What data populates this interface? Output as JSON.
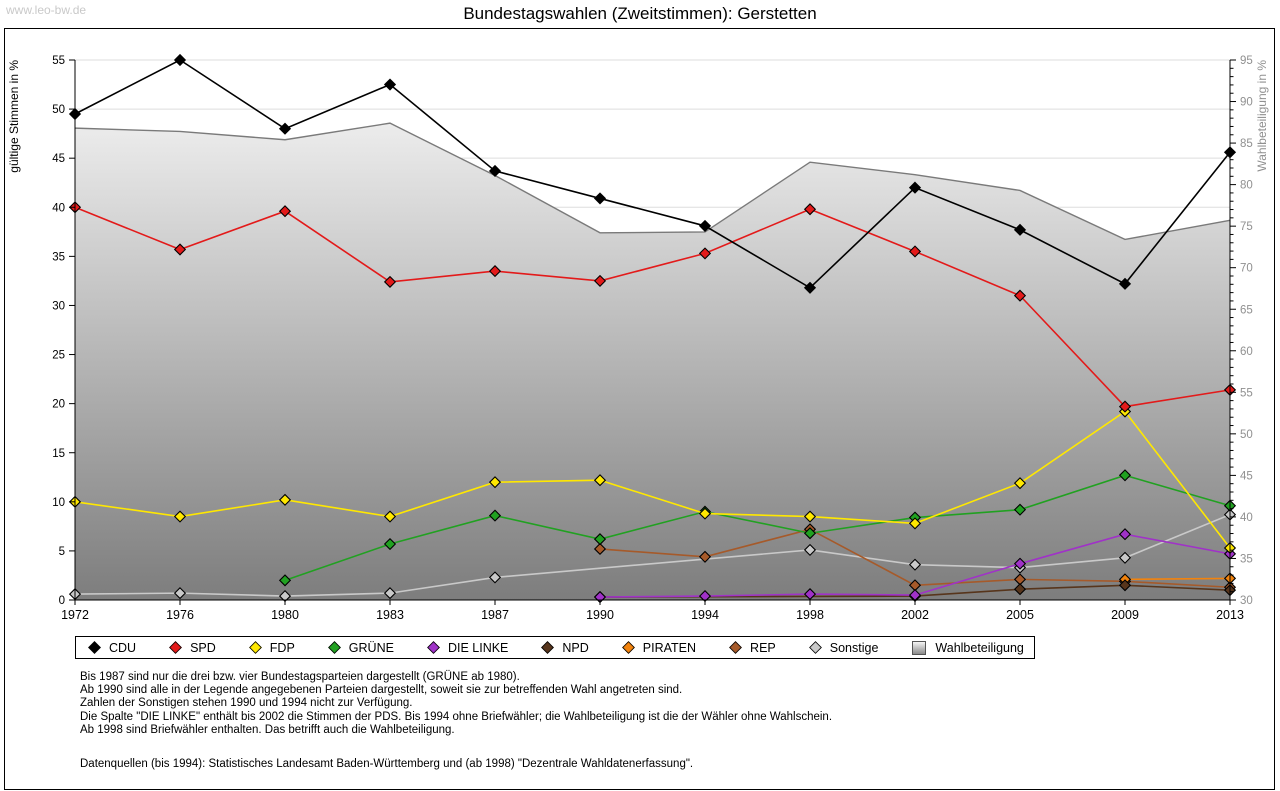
{
  "page": {
    "watermark": "www.leo-bw.de",
    "title": "Bundestagswahlen (Zweitstimmen): Gerstetten"
  },
  "chart_data": {
    "type": "line",
    "title": "Bundestagswahlen (Zweitstimmen): Gerstetten",
    "categories": [
      "1972",
      "1976",
      "1980",
      "1983",
      "1987",
      "1990",
      "1994",
      "1998",
      "2002",
      "2005",
      "2009",
      "2013"
    ],
    "y_left_axis": {
      "label": "gültige Stimmen in %",
      "min": 0,
      "max": 55,
      "tick_step": 5,
      "ticks": [
        0,
        5,
        10,
        15,
        20,
        25,
        30,
        35,
        40,
        45,
        50,
        55
      ]
    },
    "y_right_axis": {
      "label": "Wahlbeteiligung in %",
      "min": 30,
      "max": 95,
      "tick_step": 5,
      "ticks": [
        30,
        35,
        40,
        45,
        50,
        55,
        60,
        65,
        70,
        75,
        80,
        85,
        90,
        95
      ]
    },
    "grid": true,
    "legend_position": "bottom",
    "series": [
      {
        "name": "CDU",
        "axis": "left",
        "type": "line",
        "marker": "diamond",
        "color": "#000000",
        "values": [
          49.5,
          55.0,
          48.0,
          52.5,
          43.7,
          40.9,
          38.1,
          31.8,
          42.0,
          37.7,
          32.2,
          45.6
        ]
      },
      {
        "name": "SPD",
        "axis": "left",
        "type": "line",
        "marker": "diamond",
        "color": "#e31a1a",
        "values": [
          40.0,
          35.7,
          39.6,
          32.4,
          33.5,
          32.5,
          35.3,
          39.8,
          35.5,
          31.0,
          19.7,
          21.4
        ]
      },
      {
        "name": "FDP",
        "axis": "left",
        "type": "line",
        "marker": "diamond",
        "color": "#ffe800",
        "values": [
          10.0,
          8.5,
          10.2,
          8.5,
          12.0,
          12.2,
          8.8,
          8.5,
          7.8,
          11.9,
          19.2,
          5.3
        ]
      },
      {
        "name": "GRÜNE",
        "axis": "left",
        "type": "line",
        "marker": "diamond",
        "color": "#21a121",
        "values": [
          null,
          null,
          2.0,
          5.7,
          8.6,
          6.2,
          9.0,
          6.8,
          8.4,
          9.2,
          12.7,
          9.6
        ]
      },
      {
        "name": "DIE LINKE",
        "axis": "left",
        "type": "line",
        "marker": "diamond",
        "color": "#a032c8",
        "values": [
          null,
          null,
          null,
          null,
          null,
          0.3,
          0.4,
          0.6,
          0.5,
          3.7,
          6.7,
          4.7
        ]
      },
      {
        "name": "NPD",
        "axis": "left",
        "type": "line",
        "marker": "diamond",
        "color": "#57351c",
        "values": [
          null,
          null,
          null,
          null,
          null,
          0.3,
          null,
          null,
          0.4,
          1.1,
          1.5,
          1.0
        ]
      },
      {
        "name": "PIRATEN",
        "axis": "left",
        "type": "line",
        "marker": "diamond",
        "color": "#f2830d",
        "values": [
          null,
          null,
          null,
          null,
          null,
          null,
          null,
          null,
          null,
          null,
          2.1,
          2.2
        ]
      },
      {
        "name": "REP",
        "axis": "left",
        "type": "line",
        "marker": "diamond",
        "color": "#a65a2a",
        "values": [
          null,
          null,
          null,
          null,
          null,
          5.2,
          4.4,
          7.2,
          1.5,
          2.1,
          1.9,
          1.3
        ]
      },
      {
        "name": "Sonstige",
        "axis": "left",
        "type": "line",
        "marker": "diamond",
        "color": "#c9c9c9",
        "values": [
          0.6,
          0.7,
          0.4,
          0.7,
          2.3,
          null,
          null,
          5.1,
          3.6,
          3.3,
          4.3,
          8.7
        ]
      },
      {
        "name": "Wahlbeteiligung",
        "axis": "right",
        "type": "area",
        "marker": "none",
        "color": "#7a7a7a",
        "values": [
          86.8,
          86.4,
          85.4,
          87.4,
          81.1,
          74.2,
          74.3,
          82.7,
          81.2,
          79.3,
          73.4,
          75.7
        ]
      }
    ]
  },
  "footnotes": [
    "Bis 1987 sind nur die drei bzw. vier Bundestagsparteien dargestellt (GRÜNE ab 1980).",
    "Ab 1990 sind alle in der Legende angegebenen Parteien dargestellt, soweit sie zur betreffenden Wahl angetreten sind.",
    "Zahlen der Sonstigen stehen 1990 und 1994 nicht zur Verfügung.",
    "Die Spalte \"DIE LINKE\" enthält bis 2002 die Stimmen der PDS. Bis 1994 ohne Briefwähler; die Wahlbeteiligung ist die der Wähler ohne Wahlschein.",
    "Ab 1998 sind Briefwähler enthalten. Das betrifft auch die Wahlbeteiligung.",
    "Datenquellen (bis 1994): Statistisches Landesamt Baden-Württemberg und (ab 1998) \"Dezentrale Wahldatenerfassung\"."
  ],
  "style": {
    "grid_color": "#dedede",
    "axis_color": "#000000",
    "right_axis_text_color": "#909090",
    "area_gradient_top": "#fbfbfb",
    "area_gradient_bottom": "#7d7d7d",
    "area_border_color": "#7a7a7a"
  }
}
